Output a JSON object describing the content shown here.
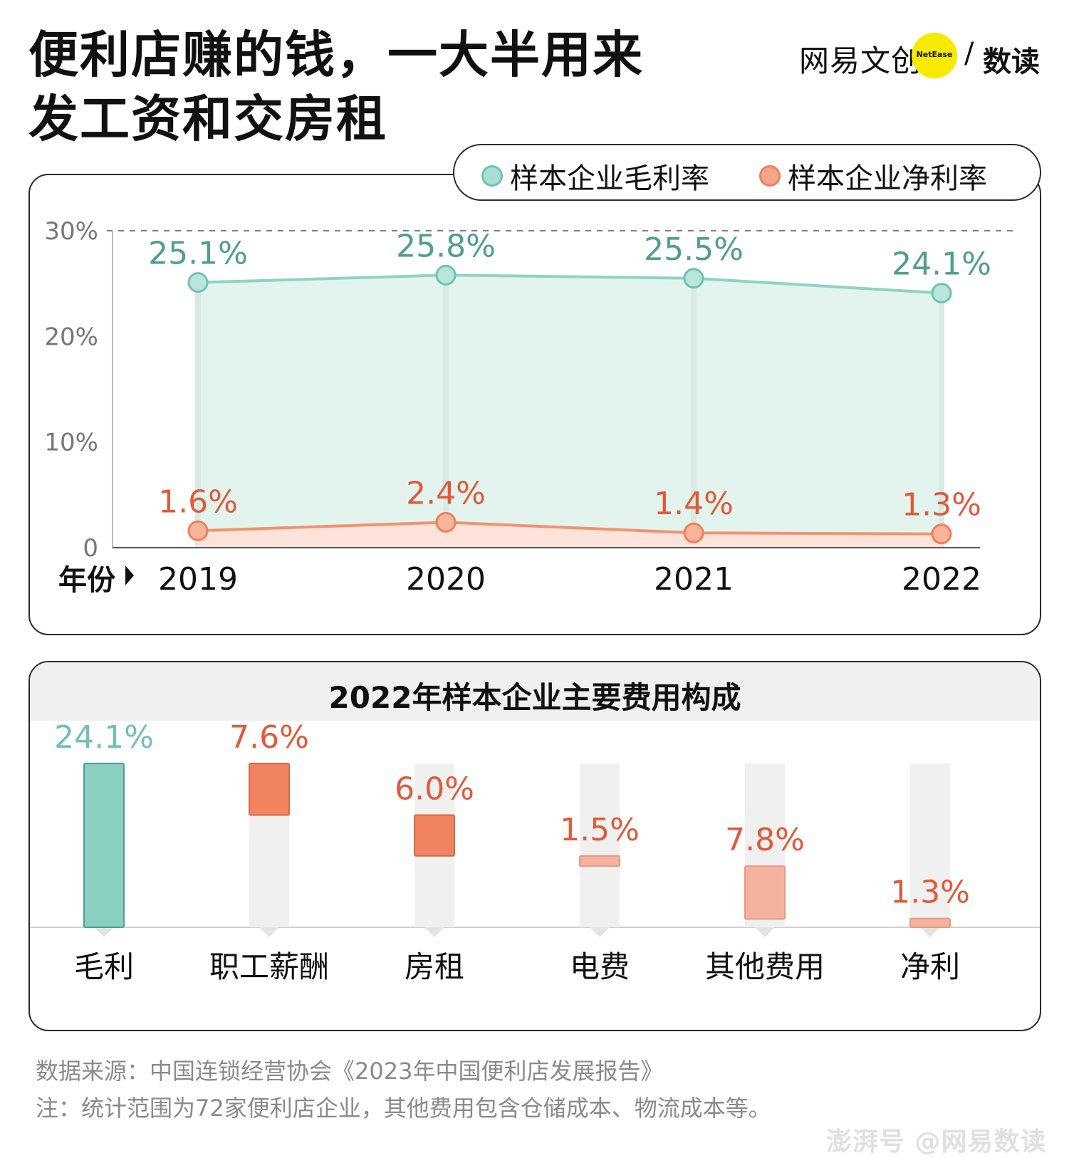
{
  "title": {
    "line1": "便利店赚的钱，一大半用来",
    "line2": "发工资和交房租"
  },
  "brand": {
    "name": "网易文创",
    "en": "NetEase",
    "slash": "/",
    "sub": "数读"
  },
  "colors": {
    "gross": "#6fc3b0",
    "gross_text": "#4f9f8c",
    "net": "#ee7f5b",
    "net_text": "#e05a3a",
    "area_gross": "#e3f4ef",
    "area_net": "#fde3d9"
  },
  "chart_data": [
    {
      "type": "line",
      "legend": [
        "样本企业毛利率",
        "样本企业净利率"
      ],
      "xlabel": "年份",
      "x": [
        "2019",
        "2020",
        "2021",
        "2022"
      ],
      "yticks": [
        "0",
        "10%",
        "20%",
        "30%"
      ],
      "ylim": [
        0,
        30
      ],
      "series": [
        {
          "name": "样本企业毛利率",
          "values": [
            25.1,
            25.8,
            25.5,
            24.1
          ],
          "labels": [
            "25.1%",
            "25.8%",
            "25.5%",
            "24.1%"
          ]
        },
        {
          "name": "样本企业净利率",
          "values": [
            1.6,
            2.4,
            1.4,
            1.3
          ],
          "labels": [
            "1.6%",
            "2.4%",
            "1.4%",
            "1.3%"
          ]
        }
      ]
    },
    {
      "type": "bar",
      "title": "2022年样本企业主要费用构成",
      "categories": [
        "毛利",
        "职工薪酬",
        "房租",
        "电费",
        "其他费用",
        "净利"
      ],
      "values": [
        24.1,
        7.6,
        6.0,
        1.5,
        7.8,
        1.3
      ],
      "labels": [
        "24.1%",
        "7.6%",
        "6.0%",
        "1.5%",
        "7.8%",
        "1.3%"
      ]
    }
  ],
  "notes": {
    "source": "数据来源：中国连锁经营协会《2023年中国便利店发展报告》",
    "note": "注：统计范围为72家便利店企业，其他费用包含仓储成本、物流成本等。"
  },
  "watermark": "澎湃号 @网易数读"
}
